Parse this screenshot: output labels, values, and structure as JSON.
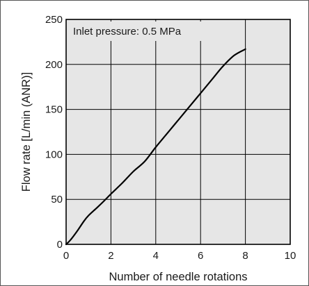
{
  "chart_data": {
    "type": "line",
    "title": "",
    "annotation": "Inlet pressure: 0.5 MPa",
    "xlabel": "Number of needle rotations",
    "ylabel": "Flow rate [L/min (ANR)]",
    "xlim": [
      0,
      10
    ],
    "ylim": [
      0,
      250
    ],
    "x_ticks": [
      0,
      2,
      4,
      6,
      8,
      10
    ],
    "y_ticks": [
      0,
      50,
      100,
      150,
      200,
      250
    ],
    "grid": true,
    "plot_background": "#e6e6e6",
    "line_color": "#000000",
    "series": [
      {
        "x": [
          0,
          0.2,
          0.5,
          0.8,
          1.0,
          1.3,
          1.6,
          2.0,
          2.5,
          3.0,
          3.5,
          4.0,
          4.5,
          5.0,
          5.5,
          6.0,
          6.5,
          7.0,
          7.5,
          8.0
        ],
        "y": [
          0,
          5,
          15,
          26,
          32,
          39,
          46,
          56,
          68,
          81,
          92,
          108,
          123,
          138,
          153,
          168,
          183,
          198,
          210,
          217
        ]
      }
    ]
  }
}
